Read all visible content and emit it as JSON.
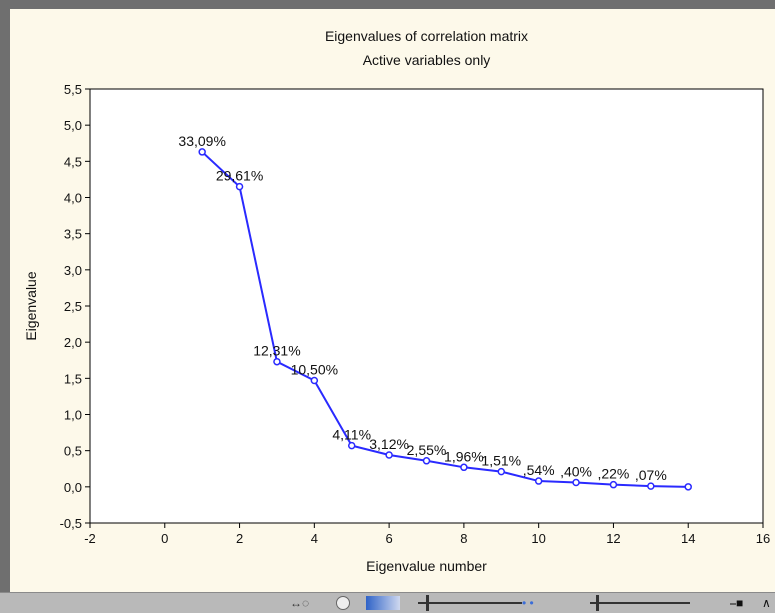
{
  "chart_data": {
    "type": "line",
    "title": "Eigenvalues of correlation matrix",
    "subtitle": "Active variables only",
    "xlabel": "Eigenvalue number",
    "ylabel": "Eigenvalue",
    "xlim": [
      -2,
      16
    ],
    "ylim": [
      -0.5,
      5.5
    ],
    "x_ticks": [
      "-2",
      "0",
      "2",
      "4",
      "6",
      "8",
      "10",
      "12",
      "14",
      "16"
    ],
    "y_ticks": [
      "-0,5",
      "0,0",
      "0,5",
      "1,0",
      "1,5",
      "2,0",
      "2,5",
      "3,0",
      "3,5",
      "4,0",
      "4,5",
      "5,0",
      "5,5"
    ],
    "grid": false,
    "line_color": "#2a2aff",
    "points": [
      {
        "x": 1,
        "y": 4.63,
        "label": "33,09%"
      },
      {
        "x": 2,
        "y": 4.15,
        "label": "29,61%"
      },
      {
        "x": 3,
        "y": 1.73,
        "label": "12,31%"
      },
      {
        "x": 4,
        "y": 1.47,
        "label": "10,50%"
      },
      {
        "x": 5,
        "y": 0.57,
        "label": "4,11%"
      },
      {
        "x": 6,
        "y": 0.44,
        "label": "3,12%"
      },
      {
        "x": 7,
        "y": 0.36,
        "label": "2,55%"
      },
      {
        "x": 8,
        "y": 0.27,
        "label": "1,96%"
      },
      {
        "x": 9,
        "y": 0.21,
        "label": "1,51%"
      },
      {
        "x": 10,
        "y": 0.08,
        "label": ",54%"
      },
      {
        "x": 11,
        "y": 0.06,
        "label": ",40%"
      },
      {
        "x": 12,
        "y": 0.03,
        "label": ",22%"
      },
      {
        "x": 13,
        "y": 0.01,
        "label": ",07%"
      },
      {
        "x": 14,
        "y": 0.0,
        "label": ""
      }
    ]
  },
  "statusbar": {
    "icons": [
      "pan-icon",
      "zoom-icon",
      "color-swatch-icon",
      "slider-1",
      "dots-icon",
      "slider-2",
      "key-icon",
      "expand-icon"
    ]
  }
}
